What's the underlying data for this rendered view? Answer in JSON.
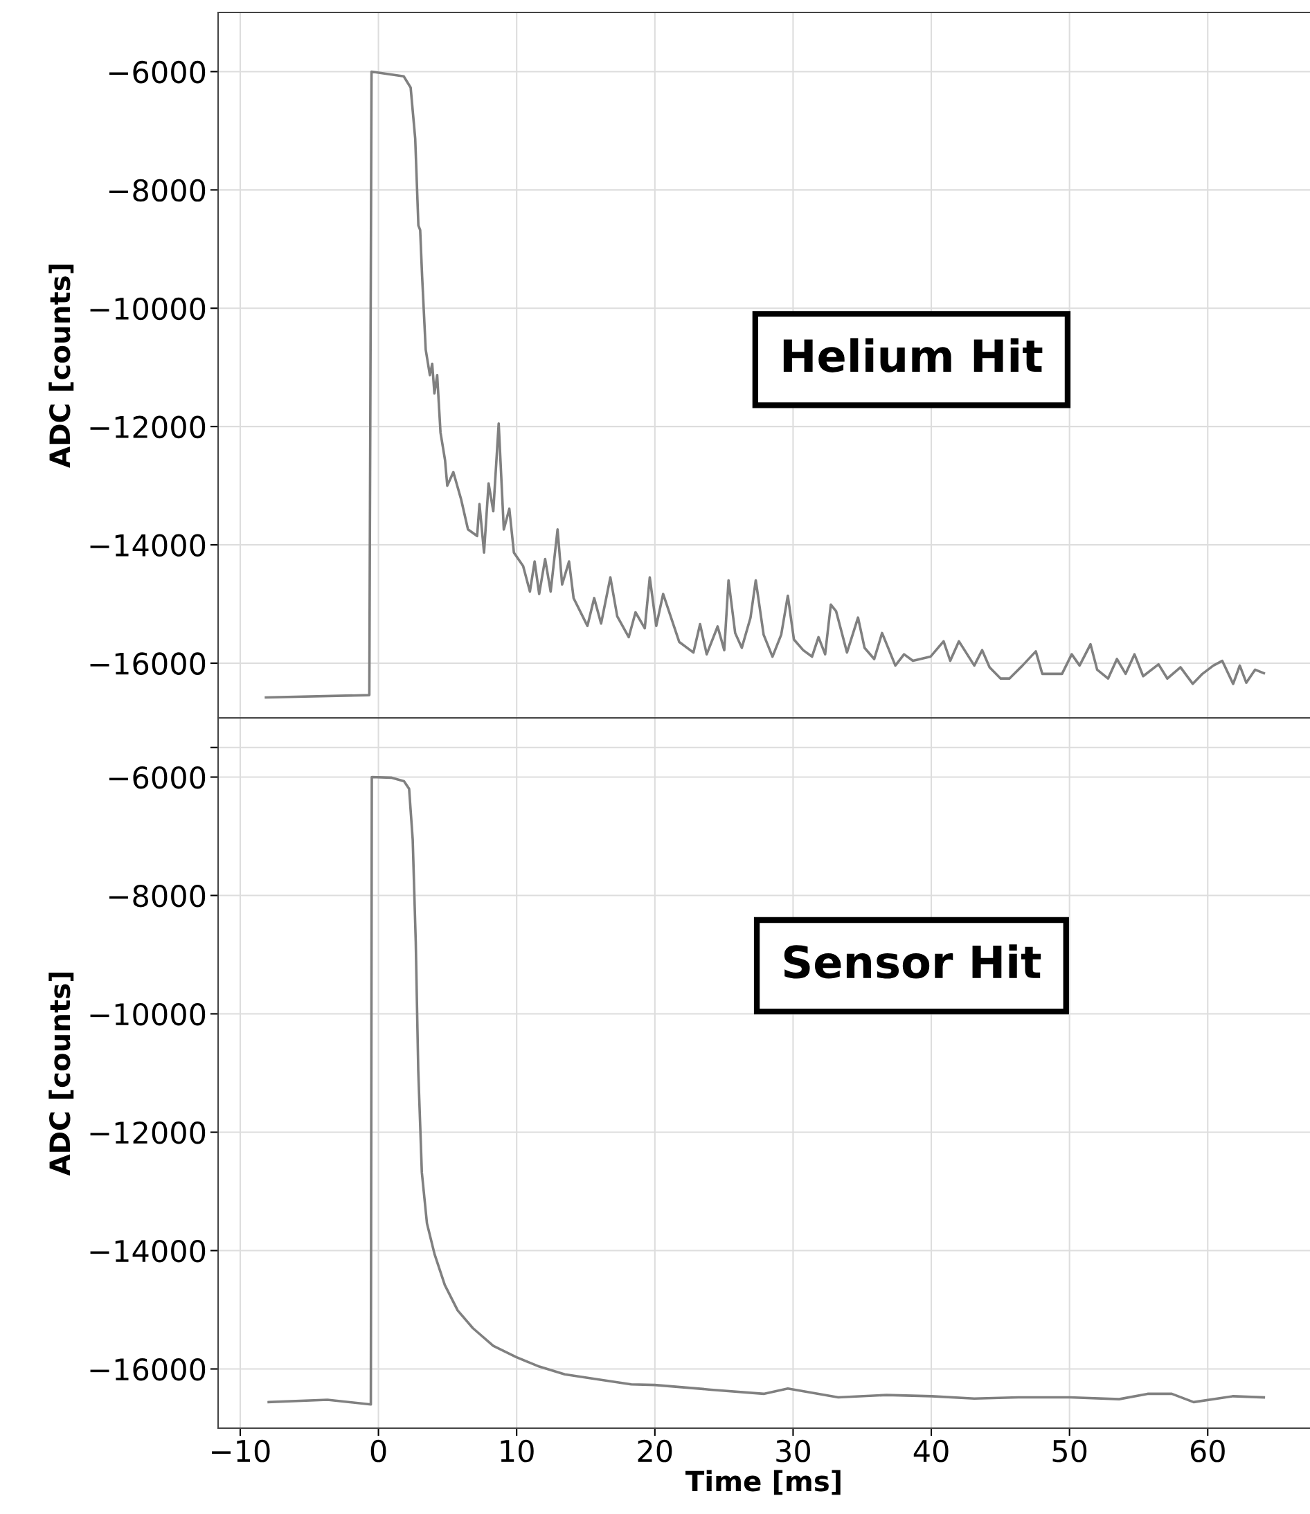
{
  "chart_data": [
    {
      "type": "line",
      "ylabel": "ADC [counts]",
      "annotations": [
        "Helium Hit"
      ],
      "xlim": [
        -11.6,
        67.4
      ],
      "ylim": [
        -16925,
        -5000
      ],
      "xticks": [
        -10,
        0,
        10,
        20,
        30,
        40,
        50,
        60
      ],
      "yticks": [
        -16000,
        -14000,
        -12000,
        -10000,
        -8000,
        -6000
      ],
      "grid": true,
      "tick_labels": "y",
      "line_style": "solid",
      "marker": "none",
      "series": [
        {
          "color": "#808080",
          "x": [
            -8.14,
            -0.66,
            -0.5,
            1.83,
            2.33,
            2.66,
            2.89,
            3.02,
            3.16,
            3.42,
            3.72,
            3.89,
            4.05,
            4.25,
            4.49,
            4.82,
            4.98,
            5.42,
            5.98,
            6.48,
            7.14,
            7.31,
            7.64,
            7.97,
            8.31,
            8.7,
            9.07,
            9.47,
            9.8,
            10.47,
            10.96,
            11.3,
            11.63,
            12.06,
            12.46,
            12.96,
            13.29,
            13.79,
            14.12,
            15.12,
            15.61,
            16.11,
            16.78,
            17.28,
            18.11,
            18.6,
            19.27,
            19.63,
            20.1,
            20.6,
            21.76,
            22.79,
            23.27,
            23.75,
            24.54,
            25.02,
            25.33,
            25.81,
            26.29,
            26.92,
            27.3,
            27.87,
            28.51,
            29.14,
            29.62,
            30.06,
            30.73,
            31.37,
            31.84,
            32.32,
            32.73,
            33.11,
            33.9,
            34.7,
            35.17,
            35.87,
            36.44,
            37.4,
            38.03,
            38.67,
            39.94,
            40.89,
            41.37,
            42.0,
            43.11,
            43.68,
            44.22,
            45.02,
            45.65,
            46.6,
            47.56,
            48.03,
            49.46,
            50.16,
            50.73,
            51.52,
            52.0,
            52.79,
            53.43,
            54.06,
            54.7,
            55.33,
            56.44,
            57.08,
            58.03,
            58.92,
            59.62,
            60.41,
            61.05,
            61.84,
            62.32,
            62.79,
            63.43,
            64.06
          ],
          "values": [
            -16580,
            -16540,
            -6000,
            -6080,
            -6270,
            -7130,
            -8600,
            -8680,
            -9460,
            -10700,
            -11130,
            -10940,
            -11440,
            -11130,
            -12100,
            -12570,
            -13000,
            -12770,
            -13230,
            -13740,
            -13850,
            -13310,
            -14130,
            -12960,
            -13430,
            -11950,
            -13740,
            -13390,
            -14130,
            -14360,
            -14790,
            -14280,
            -14830,
            -14240,
            -14790,
            -13740,
            -14670,
            -14280,
            -14900,
            -15370,
            -14900,
            -15330,
            -14550,
            -15210,
            -15560,
            -15140,
            -15410,
            -14550,
            -15370,
            -14830,
            -15640,
            -15820,
            -15340,
            -15850,
            -15380,
            -15780,
            -14600,
            -15490,
            -15740,
            -15230,
            -14600,
            -15520,
            -15890,
            -15520,
            -14860,
            -15600,
            -15780,
            -15890,
            -15560,
            -15850,
            -15010,
            -15120,
            -15820,
            -15230,
            -15740,
            -15930,
            -15490,
            -16040,
            -15850,
            -15960,
            -15890,
            -15630,
            -15960,
            -15630,
            -16040,
            -15780,
            -16070,
            -16260,
            -16260,
            -16040,
            -15800,
            -16180,
            -16180,
            -15850,
            -16040,
            -15680,
            -16110,
            -16260,
            -15930,
            -16180,
            -15850,
            -16220,
            -16020,
            -16260,
            -16070,
            -16350,
            -16180,
            -16040,
            -15960,
            -16350,
            -16040,
            -16330,
            -16110,
            -16170
          ]
        }
      ]
    },
    {
      "type": "line",
      "xlabel": "Time [ms]",
      "ylabel": "ADC [counts]",
      "annotations": [
        "Sensor Hit"
      ],
      "xlim": [
        -11.6,
        67.4
      ],
      "ylim": [
        -17000,
        -5000
      ],
      "xticks": [
        -10,
        0,
        10,
        20,
        30,
        40,
        50,
        60
      ],
      "yticks": [
        -16000,
        -14000,
        -12000,
        -10000,
        -8000,
        -6000,
        {
          "value": -5500,
          "label": null
        }
      ],
      "grid": true,
      "line_style": "solid",
      "marker": "none",
      "series": [
        {
          "color": "#808080",
          "x": [
            -7.94,
            -3.69,
            -0.55,
            -0.48,
            0.92,
            1.85,
            2.22,
            2.48,
            2.7,
            2.88,
            3.14,
            3.51,
            4.06,
            4.8,
            5.73,
            6.83,
            8.31,
            9.97,
            11.64,
            13.48,
            15.7,
            18.29,
            20.0,
            24.06,
            27.87,
            29.62,
            33.27,
            36.76,
            40.03,
            43.11,
            46.29,
            50.03,
            53.59,
            55.65,
            57.4,
            58.98,
            61.84,
            64.06
          ],
          "values": [
            -16560,
            -16520,
            -16600,
            -6000,
            -6010,
            -6070,
            -6200,
            -7060,
            -8790,
            -10950,
            -12680,
            -13540,
            -14060,
            -14580,
            -15010,
            -15310,
            -15610,
            -15800,
            -15960,
            -16090,
            -16170,
            -16260,
            -16270,
            -16350,
            -16420,
            -16330,
            -16480,
            -16440,
            -16460,
            -16500,
            -16480,
            -16480,
            -16510,
            -16420,
            -16420,
            -16560,
            -16460,
            -16480
          ]
        }
      ]
    }
  ]
}
